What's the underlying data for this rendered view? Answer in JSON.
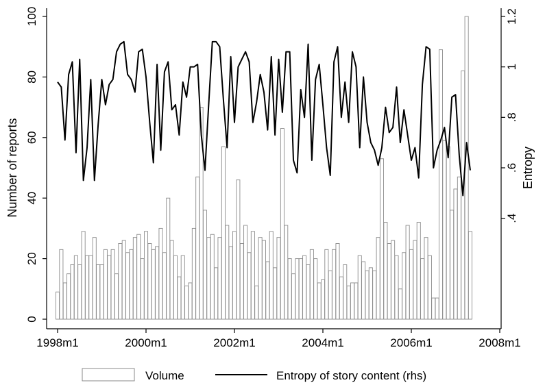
{
  "chart_data": {
    "type": "bar",
    "x": {
      "label": "",
      "ticks": [
        "1998m1",
        "2000m1",
        "2002m1",
        "2004m1",
        "2006m1",
        "2008m1"
      ],
      "start": "1998m1",
      "end": "2007m9"
    },
    "y_left": {
      "label": "Number of reports",
      "range": [
        0,
        100
      ],
      "ticks": [
        "0",
        "20",
        "40",
        "60",
        "80",
        "100"
      ]
    },
    "y_right": {
      "label": "Entropy",
      "range": [
        0,
        1.2
      ],
      "ticks": [
        ".4",
        ".6",
        ".8",
        "1",
        "1.2"
      ]
    },
    "legend": {
      "position": "bottom",
      "items": [
        "Volume",
        "Entropy of story content (rhs)"
      ]
    },
    "grid": false,
    "series": [
      {
        "name": "Volume",
        "type": "bar",
        "axis": "left",
        "values": [
          9,
          23,
          12,
          15,
          18,
          21,
          18,
          29,
          21,
          21,
          27,
          18,
          18,
          23,
          21,
          23,
          15,
          25,
          26,
          22,
          23,
          27,
          28,
          20,
          29,
          25,
          23,
          24,
          30,
          22,
          40,
          26,
          21,
          14,
          21,
          11,
          12,
          30,
          47,
          70,
          36,
          27,
          28,
          17,
          27,
          57,
          31,
          24,
          29,
          46,
          25,
          31,
          22,
          29,
          11,
          27,
          26,
          19,
          29,
          17,
          27,
          63,
          31,
          20,
          15,
          20,
          20,
          21,
          18,
          23,
          20,
          12,
          13,
          23,
          16,
          23,
          25,
          14,
          18,
          11,
          12,
          12,
          21,
          19,
          16,
          17,
          16,
          27,
          53,
          32,
          25,
          26,
          21,
          10,
          22,
          31,
          23,
          26,
          32,
          20,
          27,
          21,
          7,
          7,
          89,
          59,
          57,
          36,
          43,
          47,
          82,
          100,
          29
        ]
      },
      {
        "name": "Entropy of story content (rhs)",
        "type": "line",
        "axis": "right",
        "values": [
          0.94,
          0.92,
          0.71,
          0.97,
          1.02,
          0.66,
          1.03,
          0.55,
          0.68,
          0.95,
          0.55,
          0.77,
          0.95,
          0.85,
          0.93,
          0.95,
          1.06,
          1.09,
          1.1,
          0.97,
          0.95,
          0.9,
          1.06,
          1.07,
          0.96,
          0.78,
          0.62,
          1.01,
          0.67,
          0.98,
          1.02,
          0.83,
          0.85,
          0.73,
          0.94,
          0.88,
          1.0,
          1.0,
          1.01,
          0.73,
          0.59,
          0.85,
          1.1,
          1.1,
          1.08,
          0.87,
          0.68,
          1.04,
          0.78,
          1.0,
          1.03,
          1.06,
          1.02,
          0.78,
          0.86,
          0.97,
          0.9,
          0.75,
          1.04,
          0.73,
          1.03,
          0.82,
          1.06,
          1.06,
          0.63,
          0.58,
          0.91,
          0.8,
          1.09,
          0.63,
          0.95,
          1.01,
          0.85,
          0.68,
          0.57,
          1.02,
          1.08,
          0.8,
          0.94,
          0.78,
          1.06,
          1.0,
          0.68,
          0.96,
          0.78,
          0.7,
          0.67,
          0.61,
          0.68,
          0.84,
          0.74,
          0.76,
          0.92,
          0.7,
          0.83,
          0.73,
          0.63,
          0.68,
          0.56,
          0.93,
          1.08,
          1.07,
          0.6,
          0.67,
          0.71,
          0.76,
          0.64,
          0.88,
          0.89,
          0.65,
          0.49,
          0.7,
          0.59
        ]
      }
    ]
  }
}
